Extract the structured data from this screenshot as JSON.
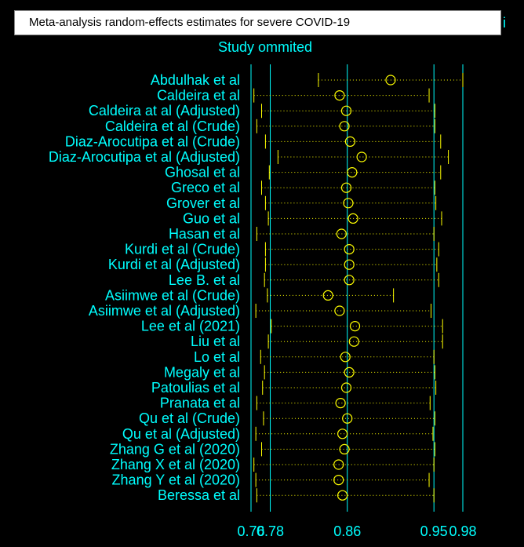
{
  "chart_data": {
    "type": "forest",
    "title": "Meta-analysis random-effects estimates for severe COVID-19",
    "title_overflow": "i",
    "subtitle": "Study ommited",
    "colors": {
      "background": "#000000",
      "text": "#00ffff",
      "marker": "#ffff00",
      "refline": "#00ffff"
    },
    "x_tick_labels": [
      "0.76",
      "0.78",
      "0.86",
      "0.95",
      "0.98"
    ],
    "x_ticks": [
      0.76,
      0.78,
      0.86,
      0.95,
      0.98
    ],
    "reference_lines": [
      0.76,
      0.78,
      0.86,
      0.95,
      0.98
    ],
    "xlim": [
      0.76,
      0.98
    ],
    "studies": [
      {
        "label": "Abdulhak et al",
        "estimate": 0.905,
        "lower": 0.83,
        "upper": 0.98
      },
      {
        "label": "Caldeira et al",
        "estimate": 0.852,
        "lower": 0.763,
        "upper": 0.945
      },
      {
        "label": "Caldeira at al (Adjusted)",
        "estimate": 0.859,
        "lower": 0.771,
        "upper": 0.951
      },
      {
        "label": "Caldeira et al (Crude)",
        "estimate": 0.857,
        "lower": 0.766,
        "upper": 0.951
      },
      {
        "label": "Diaz-Arocutipa et al (Crude)",
        "estimate": 0.863,
        "lower": 0.775,
        "upper": 0.957
      },
      {
        "label": "Diaz-Arocutipa et al (Adjusted)",
        "estimate": 0.875,
        "lower": 0.788,
        "upper": 0.965
      },
      {
        "label": "Ghosal et al",
        "estimate": 0.865,
        "lower": 0.779,
        "upper": 0.957
      },
      {
        "label": "Greco et al",
        "estimate": 0.859,
        "lower": 0.771,
        "upper": 0.951
      },
      {
        "label": "Grover et al",
        "estimate": 0.861,
        "lower": 0.775,
        "upper": 0.952
      },
      {
        "label": "Guo et al",
        "estimate": 0.866,
        "lower": 0.778,
        "upper": 0.958
      },
      {
        "label": "Hasan et al",
        "estimate": 0.854,
        "lower": 0.766,
        "upper": 0.95
      },
      {
        "label": "Kurdi  et al  (Crude)",
        "estimate": 0.862,
        "lower": 0.775,
        "upper": 0.955
      },
      {
        "label": "Kurdi  et al (Adjusted)",
        "estimate": 0.862,
        "lower": 0.775,
        "upper": 0.953
      },
      {
        "label": "Lee B. et al",
        "estimate": 0.862,
        "lower": 0.774,
        "upper": 0.955
      },
      {
        "label": "Asiimwe et al (Crude)",
        "estimate": 0.84,
        "lower": 0.777,
        "upper": 0.908
      },
      {
        "label": "Asiimwe et al (Adjusted)",
        "estimate": 0.852,
        "lower": 0.765,
        "upper": 0.947
      },
      {
        "label": "Lee et al (2021)",
        "estimate": 0.868,
        "lower": 0.781,
        "upper": 0.959
      },
      {
        "label": "Liu et al",
        "estimate": 0.867,
        "lower": 0.778,
        "upper": 0.959
      },
      {
        "label": "Lo et al",
        "estimate": 0.858,
        "lower": 0.77,
        "upper": 0.95
      },
      {
        "label": "Megaly et al",
        "estimate": 0.862,
        "lower": 0.774,
        "upper": 0.951
      },
      {
        "label": "Patoulias et al",
        "estimate": 0.859,
        "lower": 0.772,
        "upper": 0.952
      },
      {
        "label": "Pranata et al",
        "estimate": 0.853,
        "lower": 0.766,
        "upper": 0.946
      },
      {
        "label": "Qu  et al (Crude)",
        "estimate": 0.86,
        "lower": 0.773,
        "upper": 0.951
      },
      {
        "label": "Qu  et al (Adjusted)",
        "estimate": 0.855,
        "lower": 0.765,
        "upper": 0.949
      },
      {
        "label": "Zhang G  et al (2020)",
        "estimate": 0.857,
        "lower": 0.771,
        "upper": 0.951
      },
      {
        "label": "Zhang X et al (2020)",
        "estimate": 0.851,
        "lower": 0.763,
        "upper": 0.95
      },
      {
        "label": "Zhang Y et al (2020)",
        "estimate": 0.851,
        "lower": 0.765,
        "upper": 0.945
      },
      {
        "label": "Beressa et al",
        "estimate": 0.855,
        "lower": 0.766,
        "upper": 0.95
      }
    ]
  }
}
